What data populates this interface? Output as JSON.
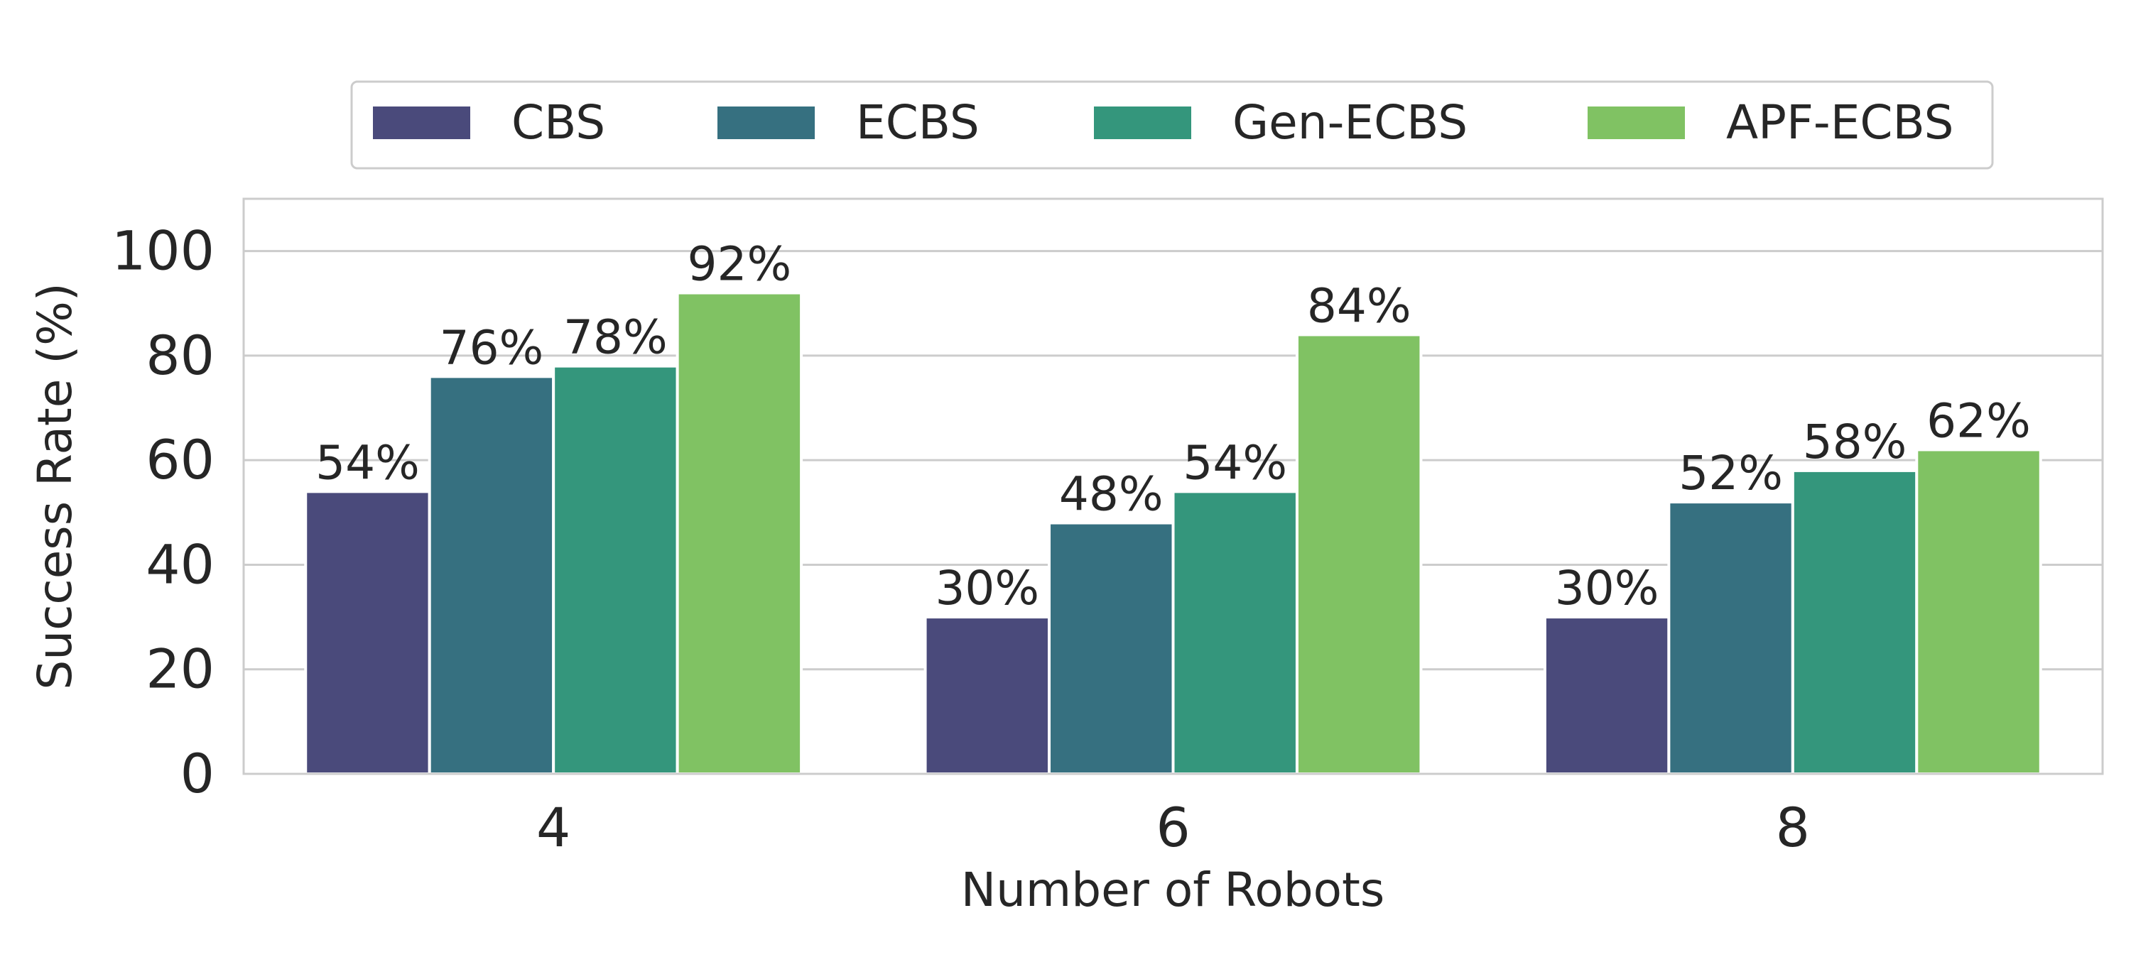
{
  "chart_data": {
    "type": "bar",
    "xlabel": "Number of Robots",
    "ylabel": "Success Rate (%)",
    "categories": [
      "4",
      "6",
      "8"
    ],
    "ylim": [
      0,
      110
    ],
    "yticks": [
      "0",
      "20",
      "40",
      "60",
      "80",
      "100"
    ],
    "grid": "horizontal",
    "legend_position": "top-center",
    "series": [
      {
        "name": "CBS",
        "color": "#4a4a7b",
        "values": [
          54,
          30,
          30
        ],
        "labels": [
          "54%",
          "30%",
          "30%"
        ]
      },
      {
        "name": "ECBS",
        "color": "#367080",
        "values": [
          76,
          48,
          52
        ],
        "labels": [
          "76%",
          "48%",
          "52%"
        ]
      },
      {
        "name": "Gen-ECBS",
        "color": "#34967c",
        "values": [
          78,
          54,
          58
        ],
        "labels": [
          "78%",
          "54%",
          "58%"
        ]
      },
      {
        "name": "APF-ECBS",
        "color": "#80c263",
        "values": [
          92,
          84,
          62
        ],
        "labels": [
          "92%",
          "84%",
          "62%"
        ]
      }
    ]
  }
}
